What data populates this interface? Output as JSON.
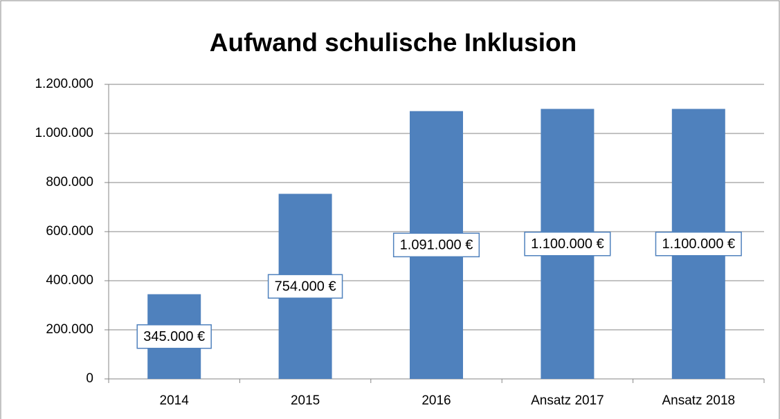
{
  "chart_data": {
    "type": "bar",
    "title": "Aufwand schulische Inklusion",
    "categories": [
      "2014",
      "2015",
      "2016",
      "Ansatz 2017",
      "Ansatz 2018"
    ],
    "values": [
      345000,
      754000,
      1091000,
      1100000,
      1100000
    ],
    "value_labels": [
      "345.000 €",
      "754.000 €",
      "1.091.000 €",
      "1.100.000 €",
      "1.100.000 €"
    ],
    "color": "#4f81bd",
    "ylim": [
      0,
      1200000
    ],
    "yticks": [
      0,
      {
        "value": 200000,
        "label": "200.000"
      },
      {
        "value": 400000,
        "label": "400.000"
      },
      {
        "value": 600000,
        "label": "600.000"
      },
      {
        "value": 800000,
        "label": "800.000"
      },
      {
        "value": 1000000,
        "label": "1.000.000"
      },
      {
        "value": 1200000,
        "label": "1.200.000"
      }
    ],
    "grid": true
  }
}
